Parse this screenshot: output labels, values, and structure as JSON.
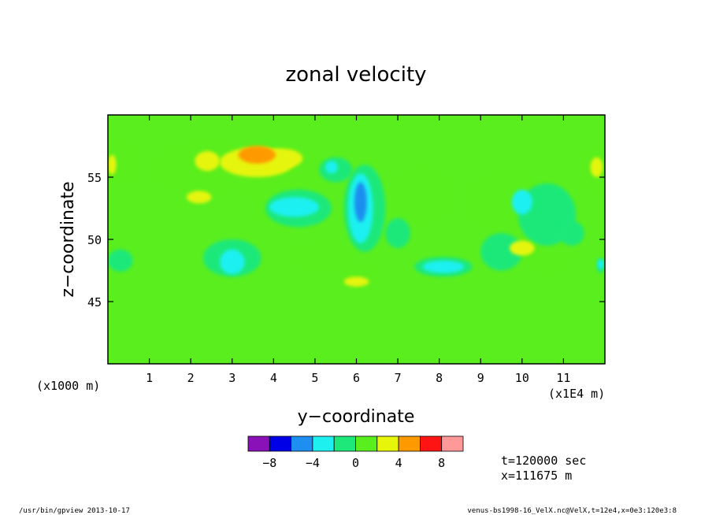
{
  "chart_data": {
    "type": "heatmap",
    "title": "zonal velocity",
    "xlabel": "y−coordinate",
    "ylabel": "z−coordinate",
    "x_unit_left": "(x1000 m)",
    "x_unit_right": "(x1E4 m)",
    "xlim": [
      0,
      12
    ],
    "ylim": [
      40,
      60
    ],
    "x_ticks": [
      1,
      2,
      3,
      4,
      5,
      6,
      7,
      8,
      9,
      10,
      11
    ],
    "x_tick_labels": [
      "1",
      "2",
      "3",
      "4",
      "5",
      "6",
      "7",
      "8",
      "9",
      "10",
      "11"
    ],
    "y_ticks": [
      45,
      50,
      55
    ],
    "y_tick_labels": [
      "45",
      "50",
      "55"
    ],
    "colorbar": {
      "levels": [
        -10,
        -8,
        -6,
        -4,
        -2,
        0,
        2,
        4,
        6,
        8,
        10
      ],
      "colors": [
        "#8a10b8",
        "#0000e6",
        "#1e8ef0",
        "#1ef0f0",
        "#1ee87a",
        "#5aee1e",
        "#e6f50a",
        "#ff9900",
        "#ff1414",
        "#ff9999"
      ],
      "tick_values": [
        -8,
        -4,
        0,
        4,
        8
      ],
      "tick_labels": [
        "−8",
        "−4",
        "0",
        "4",
        "8"
      ]
    },
    "regions": [
      {
        "level": 2,
        "x": 2.4,
        "y": 55.8,
        "rx": 1.2,
        "ry": 1.8
      },
      {
        "level": 2,
        "x": 4.0,
        "y": 55.5,
        "rx": 1.4,
        "ry": 1.6
      },
      {
        "level": 2,
        "x": 4.2,
        "y": 52.5,
        "rx": 0.6,
        "ry": 1.2
      },
      {
        "level": 2,
        "x": 5.2,
        "y": 48.6,
        "rx": 0.7,
        "ry": 0.8
      },
      {
        "level": 2,
        "x": 6.1,
        "y": 47.0,
        "rx": 0.4,
        "ry": 0.6
      },
      {
        "level": 2,
        "x": 7.6,
        "y": 53.5,
        "rx": 0.6,
        "ry": 2.0
      },
      {
        "level": 2,
        "x": 9.7,
        "y": 53.0,
        "rx": 1.0,
        "ry": 2.2
      },
      {
        "level": 2,
        "x": 10.6,
        "y": 49.0,
        "rx": 0.5,
        "ry": 1.4
      },
      {
        "level": 2,
        "x": 11.8,
        "y": 55.5,
        "rx": 0.3,
        "ry": 1.5
      },
      {
        "level": 2,
        "x": 0.3,
        "y": 56.2,
        "rx": 0.3,
        "ry": 1.5
      },
      {
        "level": 4,
        "x": 3.6,
        "y": 56.2,
        "rx": 0.9,
        "ry": 1.2
      },
      {
        "level": 4,
        "x": 4.2,
        "y": 56.5,
        "rx": 0.5,
        "ry": 0.8
      },
      {
        "level": 4,
        "x": 2.4,
        "y": 56.3,
        "rx": 0.3,
        "ry": 0.8
      },
      {
        "level": 4,
        "x": 2.2,
        "y": 53.4,
        "rx": 0.3,
        "ry": 0.5
      },
      {
        "level": 4,
        "x": 6.0,
        "y": 46.6,
        "rx": 0.3,
        "ry": 0.4
      },
      {
        "level": 4,
        "x": 10.0,
        "y": 49.3,
        "rx": 0.3,
        "ry": 0.6
      },
      {
        "level": 4,
        "x": 11.8,
        "y": 55.8,
        "rx": 0.15,
        "ry": 0.8
      },
      {
        "level": 4,
        "x": 0.1,
        "y": 56.0,
        "rx": 0.1,
        "ry": 0.8
      },
      {
        "level": 6,
        "x": 3.6,
        "y": 56.8,
        "rx": 0.45,
        "ry": 0.7
      },
      {
        "level": -2,
        "x": 3.0,
        "y": 48.5,
        "rx": 0.7,
        "ry": 1.5
      },
      {
        "level": -2,
        "x": 4.6,
        "y": 52.5,
        "rx": 0.8,
        "ry": 1.5
      },
      {
        "level": -2,
        "x": 5.5,
        "y": 55.6,
        "rx": 0.4,
        "ry": 1.0
      },
      {
        "level": -2,
        "x": 6.2,
        "y": 52.5,
        "rx": 0.5,
        "ry": 3.5
      },
      {
        "level": -2,
        "x": 7.0,
        "y": 50.5,
        "rx": 0.3,
        "ry": 1.2
      },
      {
        "level": -2,
        "x": 8.1,
        "y": 47.8,
        "rx": 0.7,
        "ry": 0.8
      },
      {
        "level": -2,
        "x": 9.5,
        "y": 49.0,
        "rx": 0.5,
        "ry": 1.5
      },
      {
        "level": -2,
        "x": 10.6,
        "y": 52.0,
        "rx": 0.7,
        "ry": 2.5
      },
      {
        "level": -2,
        "x": 11.2,
        "y": 50.5,
        "rx": 0.3,
        "ry": 1.0
      },
      {
        "level": -2,
        "x": 0.3,
        "y": 48.3,
        "rx": 0.3,
        "ry": 0.9
      },
      {
        "level": -2,
        "x": 11.9,
        "y": 47.9,
        "rx": 0.1,
        "ry": 0.6
      },
      {
        "level": -4,
        "x": 3.0,
        "y": 48.2,
        "rx": 0.3,
        "ry": 1.0
      },
      {
        "level": -4,
        "x": 4.5,
        "y": 52.6,
        "rx": 0.6,
        "ry": 0.8
      },
      {
        "level": -4,
        "x": 5.4,
        "y": 55.8,
        "rx": 0.15,
        "ry": 0.5
      },
      {
        "level": -4,
        "x": 6.1,
        "y": 52.5,
        "rx": 0.3,
        "ry": 2.8
      },
      {
        "level": -4,
        "x": 8.1,
        "y": 47.8,
        "rx": 0.5,
        "ry": 0.5
      },
      {
        "level": -4,
        "x": 10.0,
        "y": 53.0,
        "rx": 0.25,
        "ry": 1.0
      },
      {
        "level": -4,
        "x": 11.9,
        "y": 48.0,
        "rx": 0.08,
        "ry": 0.4
      },
      {
        "level": -6,
        "x": 6.1,
        "y": 53.0,
        "rx": 0.15,
        "ry": 1.6
      }
    ],
    "annotations": [
      "t=120000 sec",
      "x=111675 m"
    ]
  },
  "footer": {
    "left": "/usr/bin/gpview   2013-10-17",
    "right": "venus-bs1998-16_VelX.nc@VelX,t=12e4,x=0e3:120e3:8"
  }
}
